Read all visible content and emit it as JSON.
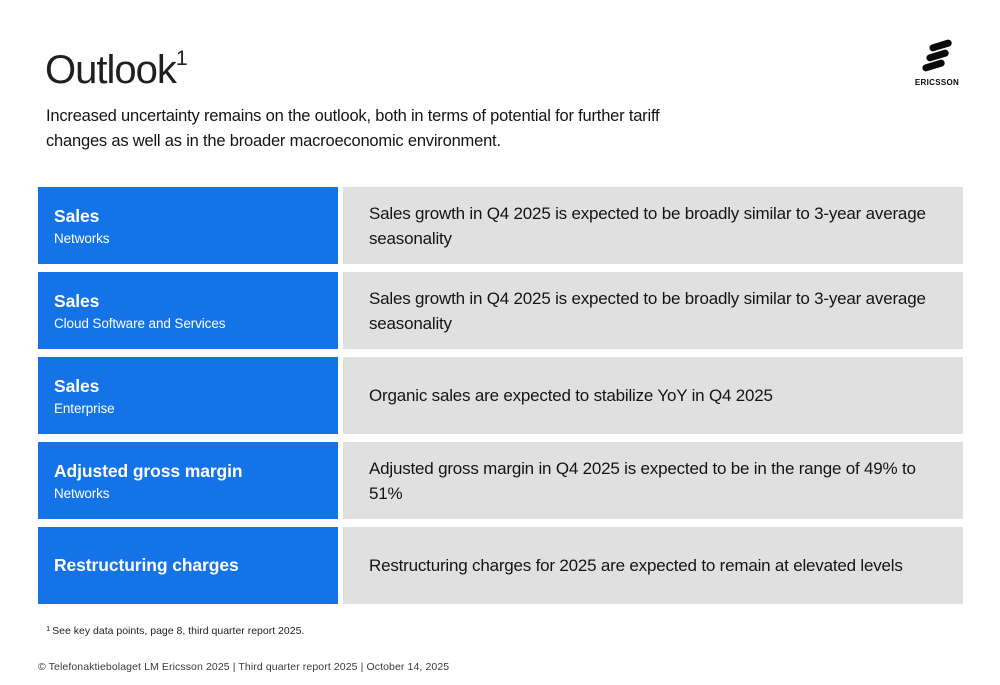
{
  "header": {
    "title": "Outlook",
    "title_superscript": "1",
    "subtitle_lines": [
      "Increased uncertainty remains on the outlook, both in terms of potential for further tariff",
      "changes as well as in the broader macroeconomic environment."
    ]
  },
  "logo": {
    "brand": "ERICSSON"
  },
  "colors": {
    "accent_blue": "#1473e6",
    "row_gray": "#e0e0e0",
    "title_text": "#1f1f1f",
    "body_text": "#141414"
  },
  "rows": [
    {
      "title": "Sales",
      "subtitle": "Networks",
      "description": "Sales growth in Q4 2025 is expected to be broadly similar to 3-year average seasonality"
    },
    {
      "title": "Sales",
      "subtitle": "Cloud Software and Services",
      "description": "Sales growth in Q4 2025 is expected to be broadly similar to 3-year average seasonality"
    },
    {
      "title": "Sales",
      "subtitle": "Enterprise",
      "description": "Organic sales are expected to stabilize YoY in Q4 2025"
    },
    {
      "title": "Adjusted gross margin",
      "subtitle": "Networks",
      "description": "Adjusted gross margin in Q4 2025 is expected to be in the range of 49% to 51%"
    },
    {
      "title": "Restructuring charges",
      "subtitle": "",
      "description": "Restructuring charges for 2025 are expected to remain at elevated levels"
    }
  ],
  "footnote": {
    "marker": "1",
    "text": "See key data points, page 8, third quarter report 2025."
  },
  "footer": {
    "text": "© Telefonaktiebolaget LM Ericsson 2025  | Third quarter report 2025 | October 14, 2025"
  }
}
